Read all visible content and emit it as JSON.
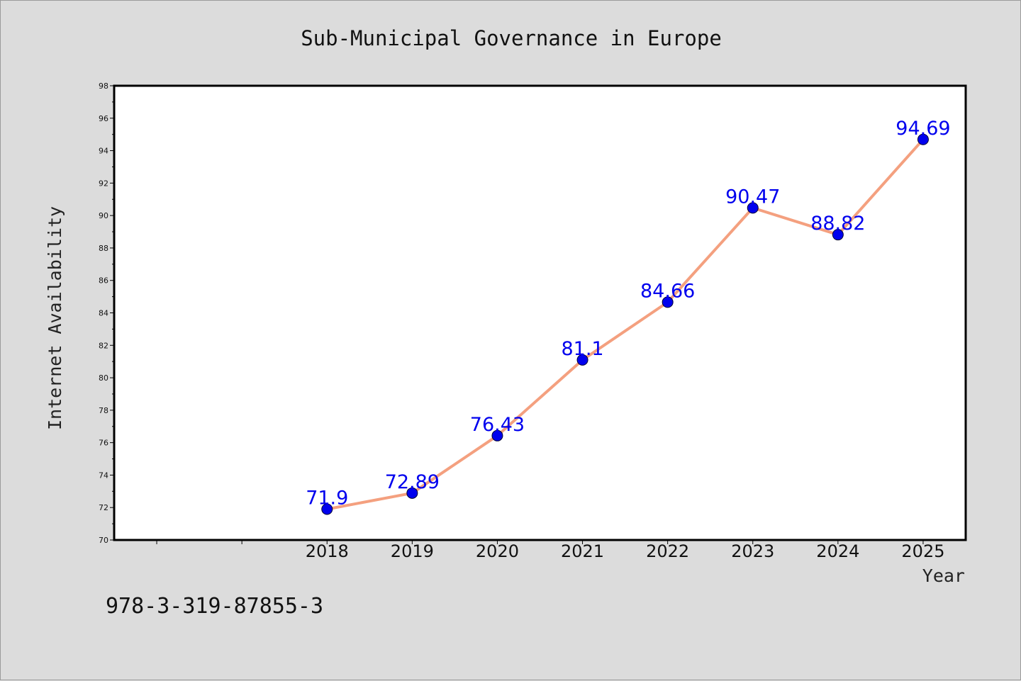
{
  "chart_data": {
    "type": "line",
    "title": "Sub-Municipal Governance in Europe",
    "xlabel": "Year",
    "ylabel": "Internet Availability",
    "x": [
      "2018",
      "2019",
      "2020",
      "2021",
      "2022",
      "2023",
      "2024",
      "2025"
    ],
    "series": [
      {
        "values": [
          71.9,
          72.89,
          76.43,
          81.1,
          84.66,
          90.47,
          88.82,
          94.69
        ],
        "labels": [
          "71.9",
          "72.89",
          "76.43",
          "81.1",
          "84.66",
          "90.47",
          "88.82",
          "94.69"
        ]
      }
    ],
    "ylim": [
      70,
      98
    ],
    "yticks": [
      "70",
      "72",
      "74",
      "76",
      "78",
      "80",
      "82",
      "84",
      "86",
      "88",
      "90",
      "92",
      "94",
      "96",
      "98"
    ],
    "xlim": [
      2015.5,
      2025.5
    ],
    "grid": false,
    "line_color": "#f4a07f",
    "marker_color": "#0000ee",
    "label_color": "#0000ee",
    "background": "#dcdcdc",
    "plot_background": "#ffffff"
  },
  "footnote": "978-3-319-87855-3"
}
